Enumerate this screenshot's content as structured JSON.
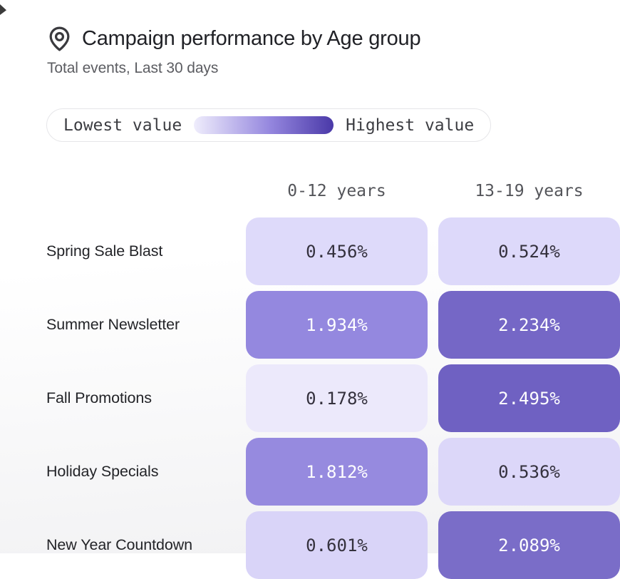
{
  "header": {
    "icon": "map-pin-icon",
    "title": "Campaign performance by Age group",
    "subtitle": "Total events, Last 30 days"
  },
  "legend": {
    "low_label": "Lowest value",
    "high_label": "Highest value",
    "gradient_start": "#efedfc",
    "gradient_mid": "#9486de",
    "gradient_end": "#4a39a8"
  },
  "colors": {
    "cell_text_dark": "#34313d",
    "cell_text_light": "#ffffff",
    "accent": "#7567c6"
  },
  "chart_data": {
    "type": "heatmap",
    "title": "Campaign performance by Age group",
    "subtitle": "Total events, Last 30 days",
    "unit": "%",
    "legend": {
      "low": "Lowest value",
      "high": "Highest value"
    },
    "columns": [
      "0-12 years",
      "13-19 years"
    ],
    "rows": [
      "Spring Sale Blast",
      "Summer Newsletter",
      "Fall Promotions",
      "Holiday Specials",
      "New Year Countdown"
    ],
    "values": [
      [
        0.456,
        0.524
      ],
      [
        1.934,
        2.234
      ],
      [
        0.178,
        2.495
      ],
      [
        1.812,
        0.536
      ],
      [
        0.601,
        2.089
      ]
    ],
    "cell_display": [
      [
        "0.456%",
        "0.524%"
      ],
      [
        "1.934%",
        "2.234%"
      ],
      [
        "0.178%",
        "2.495%"
      ],
      [
        "1.812%",
        "0.536%"
      ],
      [
        "0.601%",
        "2.089%"
      ]
    ],
    "cell_colors": [
      [
        "#dedafa",
        "#ddd9fa"
      ],
      [
        "#9488df",
        "#7567c6"
      ],
      [
        "#ece9fb",
        "#6f61c2"
      ],
      [
        "#968adf",
        "#dcd7f9"
      ],
      [
        "#d9d4f8",
        "#7a6dc8"
      ]
    ],
    "cell_text_colors": [
      [
        "dark",
        "dark"
      ],
      [
        "light",
        "light"
      ],
      [
        "dark",
        "light"
      ],
      [
        "light",
        "dark"
      ],
      [
        "dark",
        "light"
      ]
    ]
  }
}
